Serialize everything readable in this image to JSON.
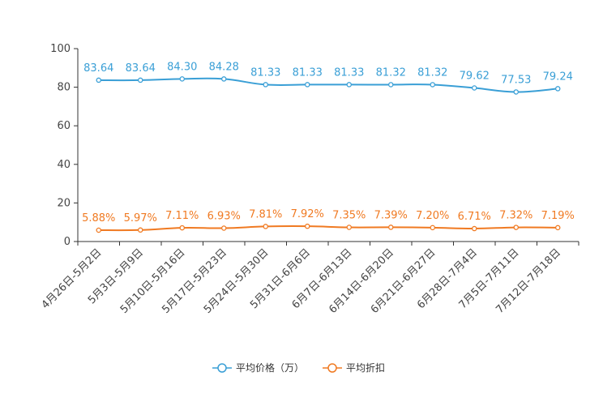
{
  "chart_data": {
    "type": "line",
    "title": "",
    "xlabel": "",
    "ylabel": "",
    "ylim": [
      0,
      100
    ],
    "yticks": [
      0,
      20,
      40,
      60,
      80,
      100
    ],
    "grid": false,
    "legend_position": "bottom-center",
    "categories": [
      "4月26日-5月2日",
      "5月3日-5月9日",
      "5月10日-5月16日",
      "5月17日-5月23日",
      "5月24日-5月30日",
      "5月31日-6月6日",
      "6月7日-6月13日",
      "6月14日-6月20日",
      "6月21日-6月27日",
      "6月28日-7月4日",
      "7月5日-7月11日",
      "7月12日-7月18日"
    ],
    "series": [
      {
        "name": "平均价格（万）",
        "color": "#3a9fd6",
        "values": [
          83.64,
          83.64,
          84.3,
          84.28,
          81.33,
          81.33,
          81.33,
          81.32,
          81.32,
          79.62,
          77.53,
          79.24
        ],
        "labels": [
          "83.64",
          "83.64",
          "84.30",
          "84.28",
          "81.33",
          "81.33",
          "81.33",
          "81.32",
          "81.32",
          "79.62",
          "77.53",
          "79.24"
        ]
      },
      {
        "name": "平均折扣",
        "color": "#f07a22",
        "values": [
          5.88,
          5.97,
          7.11,
          6.93,
          7.81,
          7.92,
          7.35,
          7.39,
          7.2,
          6.71,
          7.32,
          7.19
        ],
        "labels": [
          "5.88%",
          "5.97%",
          "7.11%",
          "6.93%",
          "7.81%",
          "7.92%",
          "7.35%",
          "7.39%",
          "7.20%",
          "6.71%",
          "7.32%",
          "7.19%"
        ]
      }
    ]
  }
}
